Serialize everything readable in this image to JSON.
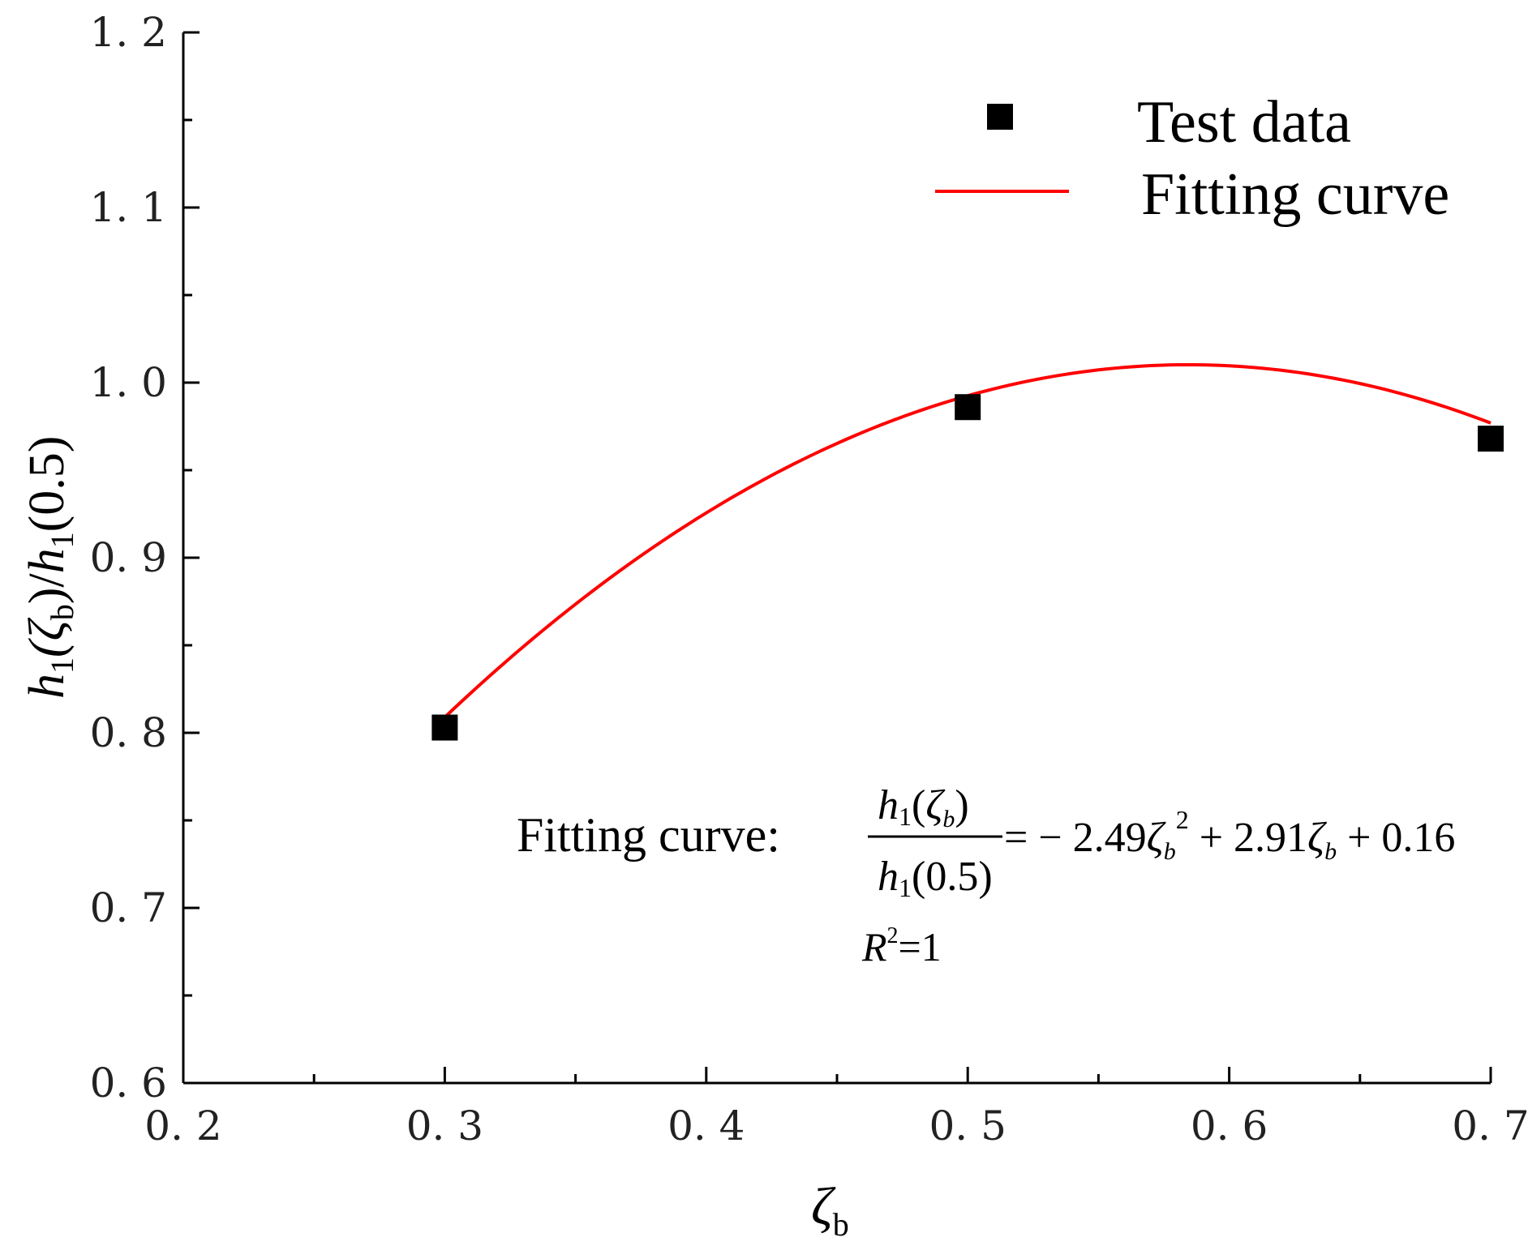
{
  "chart_data": {
    "type": "scatter",
    "title": "",
    "xlabel": "ζb",
    "ylabel": "h1(ζb)/h1(0.5)",
    "xlim": [
      0.2,
      0.7
    ],
    "ylim": [
      0.6,
      1.2
    ],
    "x_ticks": [
      0.2,
      0.3,
      0.4,
      0.5,
      0.6,
      0.7
    ],
    "x_tick_labels": [
      "0. 2",
      "0. 3",
      "0. 4",
      "0. 5",
      "0. 6",
      "0. 7"
    ],
    "y_ticks": [
      0.6,
      0.7,
      0.8,
      0.9,
      1.0,
      1.1,
      1.2
    ],
    "y_tick_labels": [
      "0. 6",
      "0. 7",
      "0. 8",
      "0. 9",
      "1. 0",
      "1. 1",
      "1. 2"
    ],
    "grid": false,
    "legend_position": "top-right",
    "series": [
      {
        "name": "Test data",
        "kind": "scatter",
        "marker": "square",
        "color": "#000000",
        "x": [
          0.3,
          0.5,
          0.7
        ],
        "y": [
          0.803,
          0.986,
          0.968
        ]
      },
      {
        "name": "Fitting curve",
        "kind": "line",
        "color": "#ff0000",
        "equation": {
          "a": -2.49,
          "b": 2.91,
          "c": 0.16
        },
        "x_range": [
          0.3,
          0.7
        ]
      }
    ],
    "annotation": {
      "prefix": "Fitting curve:",
      "frac_numerator": "h1(ζb)",
      "frac_denominator": "h1(0.5)",
      "rhs": "= − 2.49ζb² + 2.91ζb + 0.16",
      "r_squared_label": "R",
      "r_squared_sup": "2",
      "r_squared_value": "=1"
    }
  },
  "axis_title_parts": {
    "x_main": "ζ",
    "x_sub": "b",
    "y_h": "h",
    "y_sub1": "1",
    "y_open": "(ζ",
    "y_subb": "b",
    "y_mid": ")/",
    "y_h2": "h",
    "y_sub2": "1",
    "y_end": "(0.5)"
  },
  "equation_parts": {
    "prefix": "Fitting curve:",
    "num_h": "h",
    "num_sub": "1",
    "num_open": "(",
    "num_zeta": "ζ",
    "num_zsub": "b",
    "num_close": ")",
    "den_h": "h",
    "den_sub": "1",
    "den_rest": "(0.5)",
    "rhs_a": "= − 2.49",
    "rhs_z1": "ζ",
    "rhs_z1sub": "b",
    "rhs_sup": "2",
    "rhs_b": " + 2.91",
    "rhs_z2": "ζ",
    "rhs_z2sub": "b",
    "rhs_c": " + 0.16"
  },
  "legend": {
    "marker_label": "Test data",
    "line_label": "Fitting curve"
  }
}
